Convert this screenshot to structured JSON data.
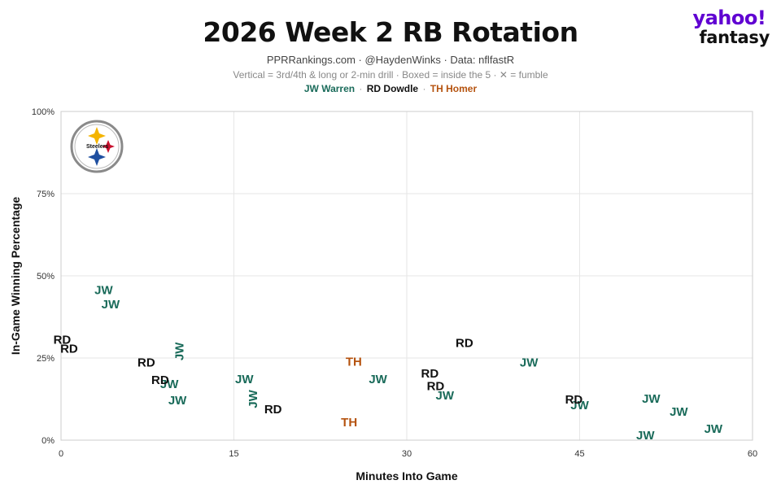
{
  "header": {
    "title": "2026 Week 2 RB Rotation",
    "subtitle": "PPRRankings.com · @HaydenWinks · Data: nflfastR",
    "note": "Vertical = 3rd/4th & long or 2-min drill · Boxed = inside the 5 · ✕ = fumble"
  },
  "logo": {
    "line1": "yahoo!",
    "line2": "fantasy"
  },
  "team_logo": {
    "text": "Steelers",
    "icon": "steelers-logo-icon"
  },
  "colors": {
    "jw": "#1a6b5a",
    "rd": "#111111",
    "th": "#b5530f",
    "grid": "#e6e6e6",
    "border": "#cccccc"
  },
  "legend": [
    {
      "label": "JW Warren",
      "color": "#1a6b5a"
    },
    {
      "label": "RD Dowdle",
      "color": "#111111"
    },
    {
      "label": "TH Homer",
      "color": "#b5530f"
    }
  ],
  "chart_data": {
    "type": "scatter",
    "title": "2026 Week 2 RB Rotation",
    "xlabel": "Minutes Into Game",
    "ylabel": "In-Game Winning Percentage",
    "xlim": [
      0,
      60
    ],
    "ylim": [
      0,
      100
    ],
    "xticks": [
      "0",
      "15",
      "30",
      "45",
      "60"
    ],
    "yticks": [
      "0%",
      "25%",
      "50%",
      "75%",
      "100%"
    ],
    "grid": true,
    "series": [
      {
        "name": "JW Warren",
        "label": "JW",
        "points": [
          {
            "x": 3.7,
            "y": 45.5
          },
          {
            "x": 4.3,
            "y": 41.2
          },
          {
            "x": 10.3,
            "y": 27,
            "vertical": true
          },
          {
            "x": 9.4,
            "y": 17
          },
          {
            "x": 10.1,
            "y": 12
          },
          {
            "x": 15.9,
            "y": 18.5
          },
          {
            "x": 16.7,
            "y": 12.5,
            "vertical": true
          },
          {
            "x": 27.5,
            "y": 18.5
          },
          {
            "x": 33.3,
            "y": 13.5
          },
          {
            "x": 40.6,
            "y": 23.5
          },
          {
            "x": 45.0,
            "y": 10.5
          },
          {
            "x": 51.2,
            "y": 12.5
          },
          {
            "x": 53.6,
            "y": 8.5
          },
          {
            "x": 50.7,
            "y": 1.3
          },
          {
            "x": 56.6,
            "y": 3.3
          }
        ]
      },
      {
        "name": "RD Dowdle",
        "label": "RD",
        "points": [
          {
            "x": 0.1,
            "y": 30.5
          },
          {
            "x": 0.7,
            "y": 27.7
          },
          {
            "x": 7.4,
            "y": 23.5
          },
          {
            "x": 8.6,
            "y": 18.2
          },
          {
            "x": 18.4,
            "y": 9.3
          },
          {
            "x": 35.0,
            "y": 29.5
          },
          {
            "x": 32.0,
            "y": 20.2
          },
          {
            "x": 32.5,
            "y": 16.3
          },
          {
            "x": 44.5,
            "y": 12.2
          }
        ]
      },
      {
        "name": "TH Homer",
        "label": "TH",
        "points": [
          {
            "x": 25.4,
            "y": 23.8
          },
          {
            "x": 25.0,
            "y": 5.3
          }
        ]
      }
    ]
  }
}
